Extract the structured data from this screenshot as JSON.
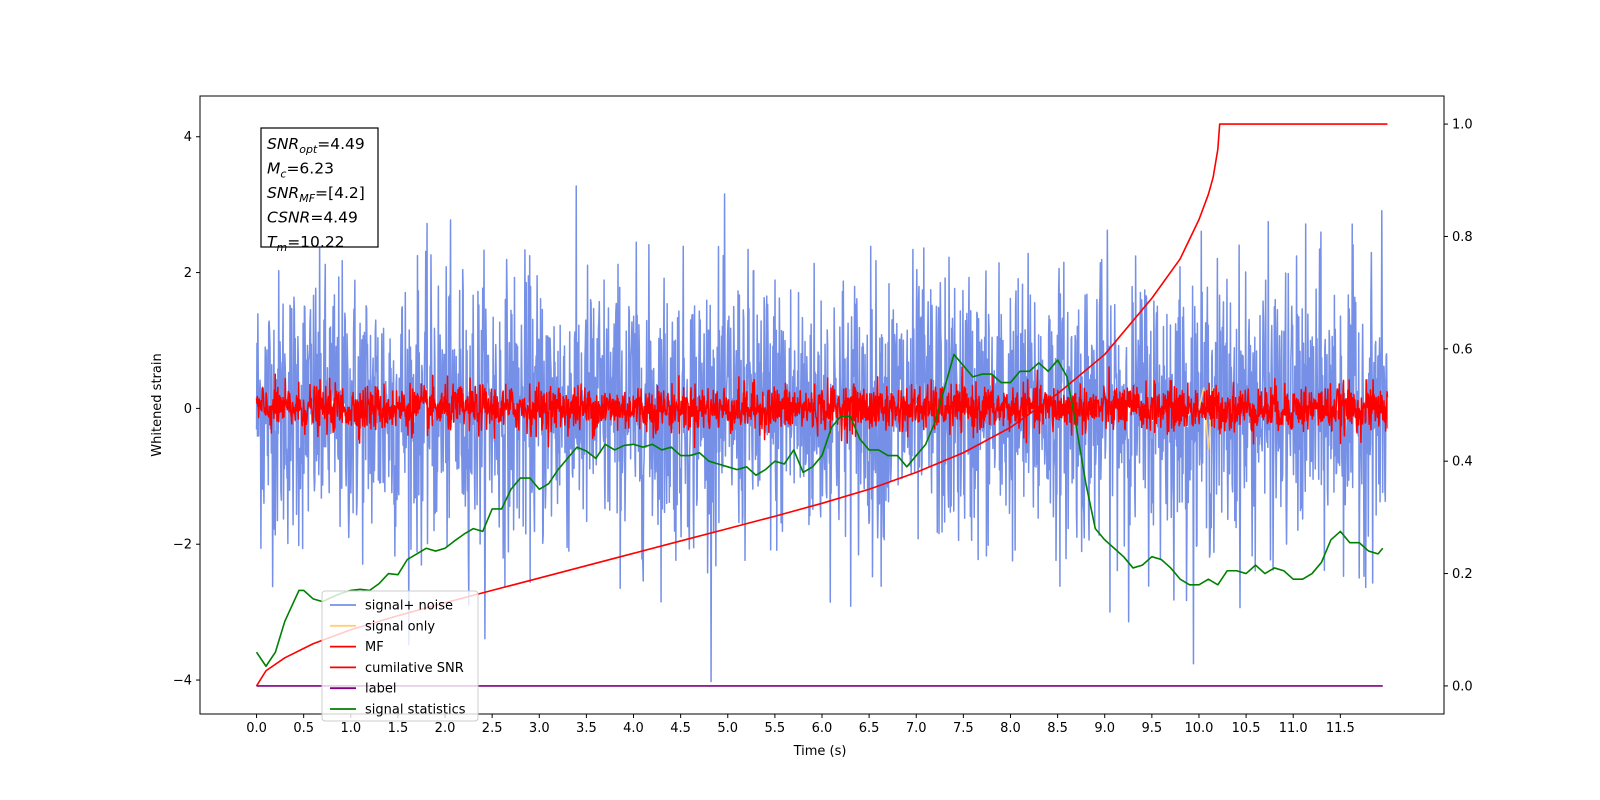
{
  "chart_data": {
    "type": "line",
    "title": "",
    "xlabel": "Time (s)",
    "ylabel": "Whitened strain",
    "ylabel_right": "",
    "xlim": [
      -0.6,
      12.6
    ],
    "ylim_left": [
      -4.5,
      4.6
    ],
    "ylim_right": [
      -0.05,
      1.05
    ],
    "x_ticks": [
      0.0,
      0.5,
      1.0,
      1.5,
      2.0,
      2.5,
      3.0,
      3.5,
      4.0,
      4.5,
      5.0,
      5.5,
      6.0,
      6.5,
      7.0,
      7.5,
      8.0,
      8.5,
      9.0,
      9.5,
      10.0,
      10.5,
      11.0,
      11.5
    ],
    "x_tick_labels": [
      "0.0",
      "0.5",
      "1.0",
      "1.5",
      "2.0",
      "2.5",
      "3.0",
      "3.5",
      "4.0",
      "4.5",
      "5.0",
      "5.5",
      "6.0",
      "6.5",
      "7.0",
      "7.5",
      "8.0",
      "8.5",
      "9.0",
      "9.5",
      "10.0",
      "10.5",
      "11.0",
      "11.5"
    ],
    "y_ticks_left": [
      -4,
      -2,
      0,
      2,
      4
    ],
    "y_tick_labels_left": [
      "−4",
      "−2",
      "0",
      "2",
      "4"
    ],
    "y_ticks_right": [
      0.0,
      0.2,
      0.4,
      0.6,
      0.8,
      1.0
    ],
    "y_tick_labels_right": [
      "0.0",
      "0.2",
      "0.4",
      "0.6",
      "0.8",
      "1.0"
    ],
    "grid": false,
    "legend_placement": "lower-left",
    "annotation_lines": [
      {
        "base": "SNR",
        "sub": "opt",
        "rest": "=4.49"
      },
      {
        "base": "M",
        "sub": "c",
        "rest": "=6.23"
      },
      {
        "base": "SNR",
        "sub": "MF",
        "rest": "=[4.2]"
      },
      {
        "base": "CSNR",
        "sub": "",
        "rest": "=4.49"
      },
      {
        "base": "T",
        "sub": "m",
        "rest": "=10.22"
      }
    ],
    "series": [
      {
        "name": "signal+ noise",
        "axis": "left",
        "color": "#7590e6",
        "kind": "noise",
        "x_range": [
          0.0,
          12.0
        ],
        "amplitude": 1.0,
        "spike_max": 4.15
      },
      {
        "name": "signal only",
        "axis": "left",
        "color": "#ffcf7a",
        "kind": "burst",
        "x": [
          10.0,
          10.05,
          10.1,
          10.15,
          10.2
        ],
        "y": [
          0.0,
          0.3,
          -0.6,
          0.3,
          0.0
        ]
      },
      {
        "name": "MF",
        "axis": "left",
        "color": "#ff0000",
        "kind": "noise",
        "x_range": [
          0.0,
          12.0
        ],
        "amplitude": 0.17,
        "spike_max": 1.0
      },
      {
        "name": "cumilative SNR",
        "axis": "right",
        "color": "#ff0000",
        "kind": "curve",
        "x": [
          0.0,
          0.1,
          0.3,
          0.6,
          1.0,
          1.5,
          2.0,
          2.5,
          3.0,
          3.5,
          4.0,
          4.5,
          5.0,
          5.5,
          6.0,
          6.5,
          7.0,
          7.5,
          8.0,
          8.5,
          9.0,
          9.5,
          9.8,
          10.0,
          10.1,
          10.15,
          10.2,
          10.22,
          12.0
        ],
        "y": [
          0.0,
          0.027,
          0.05,
          0.075,
          0.1,
          0.125,
          0.148,
          0.17,
          0.192,
          0.214,
          0.236,
          0.258,
          0.28,
          0.302,
          0.325,
          0.35,
          0.38,
          0.415,
          0.46,
          0.52,
          0.59,
          0.69,
          0.76,
          0.83,
          0.875,
          0.905,
          0.955,
          1.0,
          1.0
        ]
      },
      {
        "name": "label",
        "axis": "right",
        "color": "#800080",
        "kind": "curve",
        "x": [
          0.0,
          11.95
        ],
        "y": [
          0.0,
          0.0
        ]
      },
      {
        "name": "signal statistics",
        "axis": "right",
        "color": "#008000",
        "kind": "curve",
        "x": [
          0.0,
          0.1,
          0.2,
          0.3,
          0.45,
          0.5,
          0.6,
          0.7,
          0.8,
          0.9,
          1.0,
          1.1,
          1.2,
          1.3,
          1.4,
          1.5,
          1.6,
          1.7,
          1.8,
          1.9,
          2.0,
          2.1,
          2.2,
          2.3,
          2.4,
          2.5,
          2.6,
          2.7,
          2.8,
          2.9,
          3.0,
          3.1,
          3.2,
          3.3,
          3.4,
          3.5,
          3.6,
          3.7,
          3.8,
          3.9,
          4.0,
          4.1,
          4.2,
          4.3,
          4.4,
          4.5,
          4.6,
          4.7,
          4.8,
          4.9,
          5.0,
          5.1,
          5.2,
          5.3,
          5.4,
          5.5,
          5.6,
          5.7,
          5.8,
          5.9,
          6.0,
          6.1,
          6.2,
          6.3,
          6.4,
          6.5,
          6.6,
          6.7,
          6.8,
          6.9,
          7.0,
          7.1,
          7.2,
          7.3,
          7.4,
          7.5,
          7.6,
          7.7,
          7.8,
          7.9,
          8.0,
          8.1,
          8.2,
          8.3,
          8.4,
          8.5,
          8.6,
          8.7,
          8.8,
          8.9,
          9.0,
          9.1,
          9.2,
          9.3,
          9.4,
          9.5,
          9.6,
          9.7,
          9.8,
          9.9,
          10.0,
          10.1,
          10.2,
          10.3,
          10.4,
          10.5,
          10.6,
          10.7,
          10.8,
          10.9,
          11.0,
          11.1,
          11.2,
          11.3,
          11.4,
          11.5,
          11.6,
          11.7,
          11.8,
          11.9,
          11.95
        ],
        "y": [
          0.06,
          0.035,
          0.06,
          0.115,
          0.17,
          0.17,
          0.155,
          0.15,
          0.158,
          0.165,
          0.17,
          0.172,
          0.17,
          0.182,
          0.2,
          0.198,
          0.225,
          0.235,
          0.245,
          0.24,
          0.245,
          0.258,
          0.27,
          0.28,
          0.275,
          0.315,
          0.315,
          0.35,
          0.37,
          0.37,
          0.35,
          0.36,
          0.385,
          0.405,
          0.425,
          0.418,
          0.405,
          0.43,
          0.42,
          0.428,
          0.43,
          0.425,
          0.43,
          0.42,
          0.425,
          0.41,
          0.41,
          0.415,
          0.4,
          0.395,
          0.39,
          0.385,
          0.39,
          0.375,
          0.385,
          0.4,
          0.395,
          0.42,
          0.38,
          0.39,
          0.41,
          0.46,
          0.48,
          0.48,
          0.44,
          0.42,
          0.42,
          0.41,
          0.41,
          0.39,
          0.41,
          0.43,
          0.47,
          0.53,
          0.59,
          0.57,
          0.55,
          0.555,
          0.555,
          0.54,
          0.54,
          0.56,
          0.56,
          0.575,
          0.56,
          0.58,
          0.55,
          0.46,
          0.36,
          0.28,
          0.26,
          0.245,
          0.23,
          0.21,
          0.215,
          0.23,
          0.225,
          0.21,
          0.19,
          0.18,
          0.18,
          0.19,
          0.18,
          0.205,
          0.205,
          0.2,
          0.215,
          0.2,
          0.21,
          0.205,
          0.19,
          0.19,
          0.2,
          0.22,
          0.26,
          0.275,
          0.255,
          0.255,
          0.24,
          0.235,
          0.245
        ]
      }
    ]
  }
}
